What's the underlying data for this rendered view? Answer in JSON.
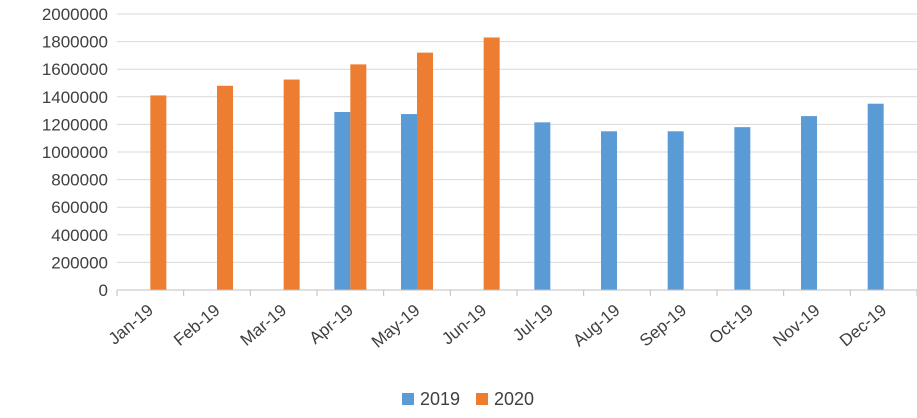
{
  "chart_data": {
    "type": "bar",
    "categories": [
      "Jan-19",
      "Feb-19",
      "Mar-19",
      "Apr-19",
      "May-19",
      "Jun-19",
      "Jul-19",
      "Aug-19",
      "Sep-19",
      "Oct-19",
      "Nov-19",
      "Dec-19"
    ],
    "series": [
      {
        "name": "2019",
        "color": "#5B9BD5",
        "values": [
          null,
          null,
          null,
          1290000,
          1275000,
          null,
          1215000,
          1150000,
          1150000,
          1180000,
          1260000,
          1350000
        ]
      },
      {
        "name": "2020",
        "color": "#ED7D31",
        "values": [
          1410000,
          1480000,
          1525000,
          1635000,
          1720000,
          1830000,
          null,
          null,
          null,
          null,
          null,
          null
        ]
      }
    ],
    "ylim": [
      0,
      2000000
    ],
    "yticks": [
      0,
      200000,
      400000,
      600000,
      800000,
      1000000,
      1200000,
      1400000,
      1600000,
      1800000,
      2000000
    ],
    "title": "",
    "xlabel": "",
    "ylabel": "",
    "grid": true,
    "legend_position": "bottom"
  }
}
